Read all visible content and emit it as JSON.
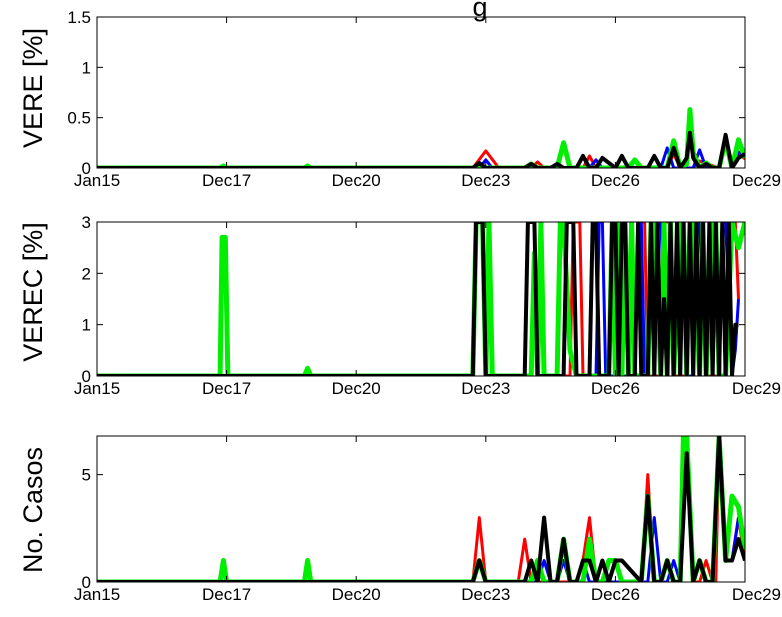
{
  "chart_data": [
    {
      "type": "line",
      "ylabel": "VERE [%]",
      "title_fragment": "g",
      "ylim": [
        0,
        1.5
      ],
      "yticks": [
        "0",
        "0.5",
        "1",
        "1.5"
      ],
      "xticks": [
        "Jan15",
        "Dec17",
        "Dec20",
        "Dec23",
        "Dec26",
        "Dec29"
      ],
      "xlim": [
        0,
        100
      ],
      "series": [
        {
          "color": "#ff0000",
          "lw": 3,
          "x": [
            0,
            58,
            60,
            62,
            67,
            68,
            69,
            75,
            76,
            77,
            88,
            89,
            90,
            92,
            93,
            96,
            97,
            98,
            99,
            100
          ],
          "y": [
            0,
            0,
            0.17,
            0,
            0,
            0.06,
            0,
            0,
            0.12,
            0,
            0,
            0.14,
            0,
            0,
            0.07,
            0,
            0.33,
            0,
            0.14,
            0.09
          ]
        },
        {
          "color": "#0000ff",
          "lw": 3,
          "x": [
            0,
            59,
            60,
            61,
            76,
            77,
            78,
            87,
            88,
            89,
            92,
            93,
            94,
            96,
            97,
            98,
            99,
            100
          ],
          "y": [
            0,
            0,
            0.08,
            0,
            0,
            0.08,
            0,
            0,
            0.2,
            0,
            0,
            0.18,
            0,
            0,
            0.3,
            0,
            0.16,
            0.14
          ]
        },
        {
          "color": "#00ee00",
          "lw": 5,
          "x": [
            0,
            19,
            19.5,
            20,
            32,
            32.5,
            33,
            66,
            67,
            68,
            71,
            72,
            73,
            82,
            83,
            84,
            88,
            89,
            90,
            91,
            91.5,
            92,
            93,
            94,
            95,
            96,
            97,
            98,
            99,
            100
          ],
          "y": [
            0,
            0,
            0.02,
            0,
            0,
            0.02,
            0,
            0,
            0.04,
            0,
            0,
            0.25,
            0,
            0,
            0.08,
            0,
            0,
            0.27,
            0,
            0.04,
            0.58,
            0.15,
            0,
            0.05,
            0,
            0,
            0.28,
            0,
            0.28,
            0.1
          ]
        },
        {
          "color": "#000000",
          "lw": 4,
          "x": [
            0,
            58,
            59,
            60,
            66,
            67,
            68,
            70,
            71,
            72,
            74,
            75,
            76,
            77,
            78,
            80,
            81,
            82,
            85,
            86,
            87,
            88,
            89,
            90,
            91,
            91.5,
            92,
            93,
            94,
            95,
            96,
            97,
            98,
            99,
            100
          ],
          "y": [
            0,
            0,
            0.05,
            0,
            0,
            0.04,
            0,
            0,
            0.04,
            0,
            0,
            0.12,
            0,
            0,
            0.1,
            0,
            0.12,
            0,
            0,
            0.12,
            0,
            0,
            0.2,
            0,
            0.1,
            0.35,
            0.1,
            0,
            0.04,
            0,
            0,
            0.33,
            0,
            0.1,
            0.14
          ]
        }
      ]
    },
    {
      "type": "line",
      "ylabel": "VEREC [%]",
      "ylim": [
        0,
        3
      ],
      "yticks": [
        "0",
        "1",
        "2",
        "3"
      ],
      "xticks": [
        "Jan15",
        "Dec17",
        "Dec20",
        "Dec23",
        "Dec26",
        "Dec29"
      ],
      "xlim": [
        0,
        100
      ],
      "series": [
        {
          "color": "#ff0000",
          "lw": 3,
          "x": [
            0,
            58,
            58.5,
            59.5,
            60,
            66,
            66.5,
            67.5,
            68,
            73,
            73.5,
            74.5,
            75,
            79,
            79.5,
            80.5,
            81,
            83,
            83.5,
            84.5,
            85,
            87,
            87.5,
            88.5,
            89,
            92,
            92.5,
            93.5,
            94,
            96,
            96.5,
            97,
            97.5,
            98.5,
            99
          ],
          "y": [
            0,
            0,
            3,
            3,
            0,
            0,
            3,
            3,
            0,
            0,
            3,
            3,
            0,
            0,
            3,
            3,
            0,
            0,
            3,
            3,
            0,
            0,
            3,
            3,
            0,
            0,
            3,
            3,
            0,
            0,
            3,
            0,
            3,
            3,
            1.5
          ]
        },
        {
          "color": "#0000ff",
          "lw": 3,
          "x": [
            0,
            58,
            58.5,
            59.5,
            60,
            66,
            66.5,
            67.5,
            68,
            72,
            72.5,
            73.5,
            74,
            77,
            77.5,
            78,
            78.5,
            79,
            83,
            83.5,
            84,
            84.5,
            85,
            86,
            87,
            88,
            88.5,
            89,
            90,
            90.5,
            91,
            92,
            92.5,
            93,
            94,
            94.5,
            95,
            96,
            96.5,
            97,
            98,
            98.5,
            99
          ],
          "y": [
            0,
            0,
            3,
            3,
            0,
            0,
            3,
            3,
            0,
            0,
            3,
            3,
            0,
            0,
            3,
            3,
            0,
            0,
            0,
            3,
            3,
            0,
            0,
            3,
            3,
            0,
            3,
            0,
            3,
            3,
            0,
            0,
            3,
            3,
            0,
            3,
            3,
            0,
            3,
            3,
            0,
            0.5,
            1.5
          ]
        },
        {
          "color": "#00ee00",
          "lw": 5,
          "x": [
            0,
            19,
            19.3,
            19.8,
            20.2,
            32,
            32.5,
            33,
            58,
            58.5,
            59,
            59.5,
            60,
            60.5,
            61,
            67,
            67.5,
            68,
            68.5,
            69,
            71,
            71.5,
            72,
            73,
            74,
            79,
            79.5,
            80,
            80.5,
            81,
            81.5,
            82,
            82.5,
            83,
            85,
            85.5,
            86,
            87,
            87.5,
            88,
            88.5,
            89,
            90,
            90.5,
            91,
            91.5,
            92,
            93,
            93.5,
            94,
            95,
            95.5,
            96,
            97,
            98,
            99,
            100
          ],
          "y": [
            0,
            0,
            2.7,
            2.7,
            0,
            0,
            0.15,
            0,
            0,
            3,
            3,
            3,
            0,
            3,
            0,
            0,
            2.4,
            0,
            3,
            0,
            0,
            3,
            3,
            0.5,
            0,
            0,
            3,
            0,
            3,
            0,
            3,
            0,
            3,
            0,
            0,
            3,
            3,
            0,
            3,
            0,
            3,
            0,
            3,
            3,
            0,
            3,
            3,
            0,
            3,
            0,
            3,
            3,
            0,
            0,
            3,
            2.5,
            3
          ]
        },
        {
          "color": "#000000",
          "lw": 4,
          "x": [
            0,
            58,
            58.5,
            59.5,
            60,
            66,
            66.5,
            67,
            67.5,
            68,
            72,
            72.5,
            73,
            73.5,
            74,
            76,
            76.5,
            77,
            77.5,
            78,
            79,
            79.5,
            80,
            80.5,
            81,
            81.5,
            82,
            83,
            83.5,
            84,
            85,
            85.5,
            86,
            86.5,
            87,
            87.5,
            88,
            88.5,
            89,
            89.5,
            90,
            90.5,
            91,
            91.5,
            92,
            92.5,
            93,
            93.5,
            94,
            94.5,
            95,
            95.5,
            96,
            96.5,
            97,
            97.5,
            98,
            98.5,
            99
          ],
          "y": [
            0,
            0,
            3,
            3,
            0,
            0,
            3,
            3,
            3,
            0,
            0,
            3,
            3,
            3,
            0,
            0,
            3,
            3,
            0,
            0,
            0,
            3,
            3,
            0,
            3,
            3,
            0,
            0,
            3,
            0,
            0,
            3,
            0,
            3,
            0,
            1.5,
            0,
            3,
            0,
            3,
            0,
            3,
            0,
            3,
            0,
            3,
            0,
            3,
            0,
            3,
            0,
            3,
            0,
            3,
            0,
            3,
            0,
            1,
            1
          ]
        }
      ]
    },
    {
      "type": "line",
      "ylabel": "No. Casos",
      "ylim": [
        0,
        6.8
      ],
      "yticks": [
        "0",
        "5"
      ],
      "xticks": [
        "Jan15",
        "Dec17",
        "Dec20",
        "Dec23",
        "Dec26",
        "Dec29"
      ],
      "xlim": [
        0,
        100
      ],
      "series": [
        {
          "color": "#ff0000",
          "lw": 3,
          "x": [
            0,
            58,
            59,
            60,
            65,
            66,
            67,
            74,
            75,
            76,
            77,
            84,
            85,
            86,
            87,
            88,
            89,
            90,
            91,
            92,
            93,
            94,
            95,
            95.5,
            96,
            97,
            98,
            99,
            100
          ],
          "y": [
            0,
            0,
            3,
            0,
            0,
            2,
            0,
            0,
            1,
            3,
            0,
            0,
            5,
            0,
            0,
            1,
            0,
            0,
            6,
            0,
            0,
            1,
            0,
            0,
            6.8,
            1,
            1,
            3,
            1
          ]
        },
        {
          "color": "#0000ff",
          "lw": 3,
          "x": [
            0,
            58,
            59,
            60,
            68,
            69,
            70,
            71,
            72,
            73,
            74,
            75,
            76,
            85,
            86,
            87,
            88,
            89,
            90,
            91,
            92,
            93,
            94,
            95,
            96,
            97,
            98,
            99,
            100
          ],
          "y": [
            0,
            0,
            1,
            0,
            0,
            1,
            0,
            0,
            1,
            0,
            0,
            1,
            0,
            0,
            3,
            0,
            0,
            1,
            0,
            6,
            0,
            1,
            0,
            0,
            6.8,
            1,
            1,
            3,
            2
          ]
        },
        {
          "color": "#00ee00",
          "lw": 5,
          "x": [
            0,
            19,
            19.5,
            20,
            32,
            32.5,
            33,
            58,
            59,
            60,
            67,
            68,
            69,
            71,
            72,
            73,
            75,
            76,
            77,
            78,
            79,
            80,
            81,
            84,
            85,
            86,
            87,
            88,
            89,
            90,
            90.5,
            91,
            92,
            93,
            94,
            95,
            96,
            97,
            98,
            99,
            100
          ],
          "y": [
            0,
            0,
            1,
            0,
            0,
            1,
            0,
            0,
            1,
            0,
            0,
            1,
            0,
            0,
            2,
            0,
            0,
            2,
            0,
            0,
            1,
            1,
            0,
            0,
            4,
            0,
            0,
            1,
            0,
            0,
            6.8,
            6.8,
            0,
            1,
            0,
            0,
            6.8,
            1,
            4,
            3.5,
            1.5
          ]
        },
        {
          "color": "#000000",
          "lw": 4,
          "x": [
            0,
            58,
            59,
            60,
            66,
            67,
            68,
            69,
            70,
            71,
            72,
            73,
            74,
            75,
            76,
            77,
            78,
            79,
            80,
            81,
            84,
            85,
            86,
            87,
            88,
            89,
            90,
            91,
            92,
            93,
            94,
            95,
            96,
            97,
            98,
            99,
            100
          ],
          "y": [
            0,
            0,
            1,
            0,
            0,
            1,
            0,
            3,
            0,
            0,
            2,
            0,
            0,
            1,
            1,
            0,
            1,
            0,
            1,
            1,
            0,
            4,
            0,
            0,
            1,
            0,
            0,
            6,
            0,
            1,
            0,
            0,
            6.8,
            1,
            1,
            2,
            1
          ]
        }
      ]
    }
  ]
}
